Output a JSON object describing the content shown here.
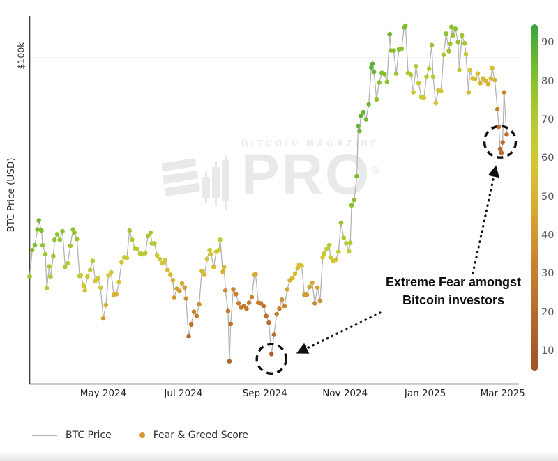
{
  "y_axis": {
    "label": "BTC Price (USD)",
    "tick": "$100k"
  },
  "x_axis": {
    "ticks": [
      {
        "label": "May 2024",
        "date": "2024-05-01"
      },
      {
        "label": "Jul 2024",
        "date": "2024-07-01"
      },
      {
        "label": "Sep 2024",
        "date": "2024-09-01"
      },
      {
        "label": "Nov 2024",
        "date": "2024-11-01"
      },
      {
        "label": "Jan 2025",
        "date": "2025-01-01"
      },
      {
        "label": "Mar 2025",
        "date": "2025-03-01"
      }
    ]
  },
  "colorbar": {
    "ticks": [
      "90",
      "80",
      "70",
      "60",
      "50",
      "40",
      "30",
      "20",
      "10"
    ],
    "value_min": 5,
    "value_max": 95,
    "stops": [
      [
        5,
        "#a0522a"
      ],
      [
        12,
        "#ab5c2b"
      ],
      [
        22,
        "#b96d2d"
      ],
      [
        32,
        "#c7812f"
      ],
      [
        42,
        "#d29b31"
      ],
      [
        50,
        "#d8b232"
      ],
      [
        58,
        "#d6c433"
      ],
      [
        66,
        "#c2cb33"
      ],
      [
        72,
        "#adc832"
      ],
      [
        80,
        "#8cc02e"
      ],
      [
        87,
        "#62b433"
      ],
      [
        94,
        "#3fa43f"
      ]
    ]
  },
  "legend": {
    "items": [
      {
        "label": "BTC Price",
        "swatch": "line",
        "color": "#b3b3b3"
      },
      {
        "label": "Fear & Greed Score",
        "swatch": "dot",
        "color": "#d9992f"
      }
    ]
  },
  "annotation": {
    "line1": "Extreme Fear amongst",
    "line2": "Bitcoin investors"
  },
  "watermark": {
    "brand": "BITCOIN MAGAZINE",
    "product": "PRO",
    "registered": "®"
  },
  "chart_data": {
    "type": "line",
    "title": "",
    "ylabel": "BTC Price (USD)",
    "y_gridlines": [
      {
        "label": "$100k",
        "value_k": 100
      }
    ],
    "x_range": [
      "2024-03-06",
      "2025-03-04"
    ],
    "y_range_k": [
      46,
      106.5
    ],
    "legend_position": "bottom",
    "color_scale_name": "Fear & Greed Score",
    "series": [
      {
        "name": "BTC Price",
        "color_by": "Fear & Greed Score",
        "points": [
          [
            "2024-03-06",
            63.8,
            76
          ],
          [
            "2024-03-08",
            68.2,
            80
          ],
          [
            "2024-03-10",
            69.0,
            81
          ],
          [
            "2024-03-12",
            71.6,
            82
          ],
          [
            "2024-03-13",
            73.1,
            84
          ],
          [
            "2024-03-15",
            71.4,
            82
          ],
          [
            "2024-03-16",
            69.0,
            79
          ],
          [
            "2024-03-18",
            67.5,
            75
          ],
          [
            "2024-03-19",
            61.9,
            68
          ],
          [
            "2024-03-21",
            65.5,
            73
          ],
          [
            "2024-03-22",
            63.8,
            71
          ],
          [
            "2024-03-24",
            67.2,
            75
          ],
          [
            "2024-03-25",
            69.9,
            79
          ],
          [
            "2024-03-27",
            70.8,
            80
          ],
          [
            "2024-03-29",
            69.9,
            78
          ],
          [
            "2024-03-31",
            71.3,
            80
          ],
          [
            "2024-04-02",
            65.4,
            71
          ],
          [
            "2024-04-04",
            66.0,
            72
          ],
          [
            "2024-04-06",
            68.9,
            76
          ],
          [
            "2024-04-08",
            71.6,
            79
          ],
          [
            "2024-04-09",
            71.1,
            78
          ],
          [
            "2024-04-11",
            70.0,
            76
          ],
          [
            "2024-04-13",
            63.9,
            66
          ],
          [
            "2024-04-14",
            64.0,
            65
          ],
          [
            "2024-04-16",
            62.3,
            60
          ],
          [
            "2024-04-17",
            61.5,
            57
          ],
          [
            "2024-04-19",
            63.8,
            62
          ],
          [
            "2024-04-21",
            64.9,
            64
          ],
          [
            "2024-04-23",
            66.4,
            68
          ],
          [
            "2024-04-25",
            63.1,
            60
          ],
          [
            "2024-04-27",
            63.5,
            61
          ],
          [
            "2024-04-29",
            62.0,
            57
          ],
          [
            "2024-05-01",
            56.9,
            43
          ],
          [
            "2024-05-03",
            59.1,
            48
          ],
          [
            "2024-05-05",
            64.0,
            58
          ],
          [
            "2024-05-07",
            64.5,
            60
          ],
          [
            "2024-05-09",
            60.8,
            51
          ],
          [
            "2024-05-11",
            60.9,
            51
          ],
          [
            "2024-05-13",
            62.9,
            56
          ],
          [
            "2024-05-15",
            66.2,
            63
          ],
          [
            "2024-05-17",
            67.0,
            65
          ],
          [
            "2024-05-19",
            66.9,
            65
          ],
          [
            "2024-05-21",
            71.4,
            75
          ],
          [
            "2024-05-23",
            69.9,
            72
          ],
          [
            "2024-05-25",
            68.5,
            70
          ],
          [
            "2024-05-27",
            68.4,
            70
          ],
          [
            "2024-05-29",
            67.6,
            68
          ],
          [
            "2024-05-31",
            67.5,
            68
          ],
          [
            "2024-06-02",
            67.7,
            69
          ],
          [
            "2024-06-04",
            70.5,
            74
          ],
          [
            "2024-06-06",
            71.1,
            75
          ],
          [
            "2024-06-07",
            69.3,
            71
          ],
          [
            "2024-06-09",
            69.3,
            70
          ],
          [
            "2024-06-11",
            67.3,
            64
          ],
          [
            "2024-06-13",
            66.7,
            62
          ],
          [
            "2024-06-15",
            66.0,
            60
          ],
          [
            "2024-06-17",
            66.5,
            61
          ],
          [
            "2024-06-19",
            64.9,
            54
          ],
          [
            "2024-06-21",
            64.1,
            51
          ],
          [
            "2024-06-23",
            63.2,
            49
          ],
          [
            "2024-06-24",
            60.3,
            40
          ],
          [
            "2024-06-26",
            61.8,
            44
          ],
          [
            "2024-06-28",
            61.4,
            43
          ],
          [
            "2024-06-30",
            62.7,
            47
          ],
          [
            "2024-07-02",
            62.0,
            44
          ],
          [
            "2024-07-03",
            60.2,
            37
          ],
          [
            "2024-07-05",
            53.9,
            22
          ],
          [
            "2024-07-07",
            55.9,
            26
          ],
          [
            "2024-07-09",
            58.0,
            32
          ],
          [
            "2024-07-11",
            57.3,
            29
          ],
          [
            "2024-07-13",
            59.2,
            37
          ],
          [
            "2024-07-15",
            64.7,
            54
          ],
          [
            "2024-07-17",
            64.1,
            52
          ],
          [
            "2024-07-19",
            66.7,
            60
          ],
          [
            "2024-07-21",
            68.2,
            63
          ],
          [
            "2024-07-22",
            67.5,
            61
          ],
          [
            "2024-07-24",
            65.4,
            55
          ],
          [
            "2024-07-26",
            67.9,
            60
          ],
          [
            "2024-07-28",
            68.2,
            61
          ],
          [
            "2024-07-29",
            69.9,
            65
          ],
          [
            "2024-07-31",
            64.6,
            50
          ],
          [
            "2024-08-01",
            65.4,
            52
          ],
          [
            "2024-08-02",
            61.5,
            37
          ],
          [
            "2024-08-04",
            58.1,
            27
          ],
          [
            "2024-08-05",
            49.8,
            17
          ],
          [
            "2024-08-06",
            56.0,
            26
          ],
          [
            "2024-08-08",
            61.7,
            34
          ],
          [
            "2024-08-10",
            60.9,
            32
          ],
          [
            "2024-08-12",
            59.4,
            30
          ],
          [
            "2024-08-14",
            58.7,
            29
          ],
          [
            "2024-08-16",
            58.9,
            29
          ],
          [
            "2024-08-18",
            58.5,
            28
          ],
          [
            "2024-08-20",
            59.5,
            30
          ],
          [
            "2024-08-22",
            60.4,
            33
          ],
          [
            "2024-08-24",
            64.1,
            47
          ],
          [
            "2024-08-25",
            64.2,
            47
          ],
          [
            "2024-08-27",
            59.5,
            29
          ],
          [
            "2024-08-29",
            59.4,
            29
          ],
          [
            "2024-08-31",
            58.9,
            26
          ],
          [
            "2024-09-02",
            57.3,
            23
          ],
          [
            "2024-09-04",
            56.2,
            22
          ],
          [
            "2024-09-06",
            51.0,
            15
          ],
          [
            "2024-09-08",
            54.2,
            22
          ],
          [
            "2024-09-10",
            57.6,
            30
          ],
          [
            "2024-09-12",
            58.5,
            32
          ],
          [
            "2024-09-14",
            60.0,
            38
          ],
          [
            "2024-09-16",
            58.9,
            33
          ],
          [
            "2024-09-18",
            61.7,
            45
          ],
          [
            "2024-09-20",
            63.2,
            49
          ],
          [
            "2024-09-22",
            63.6,
            50
          ],
          [
            "2024-09-24",
            64.3,
            52
          ],
          [
            "2024-09-26",
            65.2,
            54
          ],
          [
            "2024-09-27",
            65.8,
            56
          ],
          [
            "2024-09-29",
            65.6,
            55
          ],
          [
            "2024-10-01",
            60.8,
            42
          ],
          [
            "2024-10-03",
            60.8,
            41
          ],
          [
            "2024-10-05",
            62.1,
            45
          ],
          [
            "2024-10-07",
            62.8,
            47
          ],
          [
            "2024-10-09",
            59.4,
            36
          ],
          [
            "2024-10-11",
            62.0,
            44
          ],
          [
            "2024-10-13",
            59.8,
            38
          ],
          [
            "2024-10-15",
            67.0,
            60
          ],
          [
            "2024-10-16",
            67.6,
            63
          ],
          [
            "2024-10-18",
            68.4,
            66
          ],
          [
            "2024-10-20",
            69.0,
            70
          ],
          [
            "2024-10-21",
            67.0,
            63
          ],
          [
            "2024-10-23",
            66.4,
            60
          ],
          [
            "2024-10-25",
            66.6,
            61
          ],
          [
            "2024-10-27",
            67.9,
            65
          ],
          [
            "2024-10-29",
            72.7,
            77
          ],
          [
            "2024-10-31",
            70.2,
            72
          ],
          [
            "2024-11-02",
            69.3,
            70
          ],
          [
            "2024-11-04",
            68.0,
            66
          ],
          [
            "2024-11-05",
            69.4,
            70
          ],
          [
            "2024-11-06",
            75.6,
            80
          ],
          [
            "2024-11-08",
            76.5,
            80
          ],
          [
            "2024-11-10",
            80.4,
            83
          ],
          [
            "2024-11-11",
            88.7,
            86
          ],
          [
            "2024-11-12",
            87.9,
            84
          ],
          [
            "2024-11-13",
            90.4,
            88
          ],
          [
            "2024-11-15",
            91.0,
            86
          ],
          [
            "2024-11-17",
            89.8,
            83
          ],
          [
            "2024-11-19",
            92.3,
            84
          ],
          [
            "2024-11-21",
            98.4,
            88
          ],
          [
            "2024-11-22",
            99.0,
            89
          ],
          [
            "2024-11-23",
            97.7,
            86
          ],
          [
            "2024-11-25",
            93.1,
            78
          ],
          [
            "2024-11-27",
            95.9,
            80
          ],
          [
            "2024-11-29",
            97.5,
            82
          ],
          [
            "2024-12-01",
            97.3,
            81
          ],
          [
            "2024-12-03",
            96.0,
            78
          ],
          [
            "2024-12-05",
            103.9,
            84
          ],
          [
            "2024-12-06",
            101.2,
            81
          ],
          [
            "2024-12-08",
            101.2,
            80
          ],
          [
            "2024-12-10",
            97.4,
            75
          ],
          [
            "2024-12-12",
            101.4,
            80
          ],
          [
            "2024-12-14",
            101.5,
            80
          ],
          [
            "2024-12-16",
            105.0,
            83
          ],
          [
            "2024-12-17",
            105.3,
            82
          ],
          [
            "2024-12-19",
            97.5,
            73
          ],
          [
            "2024-12-21",
            97.2,
            72
          ],
          [
            "2024-12-23",
            94.3,
            65
          ],
          [
            "2024-12-25",
            98.6,
            71
          ],
          [
            "2024-12-27",
            95.8,
            67
          ],
          [
            "2024-12-29",
            93.5,
            62
          ],
          [
            "2024-12-31",
            93.4,
            62
          ],
          [
            "2025-01-02",
            96.9,
            70
          ],
          [
            "2025-01-04",
            98.2,
            72
          ],
          [
            "2025-01-06",
            102.1,
            78
          ],
          [
            "2025-01-07",
            96.9,
            69
          ],
          [
            "2025-01-09",
            92.5,
            58
          ],
          [
            "2025-01-11",
            94.6,
            62
          ],
          [
            "2025-01-13",
            94.5,
            60
          ],
          [
            "2025-01-15",
            100.5,
            74
          ],
          [
            "2025-01-17",
            104.0,
            79
          ],
          [
            "2025-01-19",
            101.1,
            75
          ],
          [
            "2025-01-20",
            102.3,
            76
          ],
          [
            "2025-01-21",
            105.1,
            80
          ],
          [
            "2025-01-22",
            103.7,
            78
          ],
          [
            "2025-01-24",
            104.8,
            79
          ],
          [
            "2025-01-26",
            102.6,
            76
          ],
          [
            "2025-01-27",
            98.0,
            65
          ],
          [
            "2025-01-29",
            103.7,
            76
          ],
          [
            "2025-01-31",
            102.4,
            74
          ],
          [
            "2025-02-01",
            100.6,
            64
          ],
          [
            "2025-02-03",
            94.3,
            52
          ],
          [
            "2025-02-04",
            98.0,
            58
          ],
          [
            "2025-02-06",
            96.6,
            55
          ],
          [
            "2025-02-08",
            96.5,
            54
          ],
          [
            "2025-02-10",
            97.4,
            56
          ],
          [
            "2025-02-12",
            95.8,
            52
          ],
          [
            "2025-02-14",
            96.6,
            53
          ],
          [
            "2025-02-16",
            96.2,
            52
          ],
          [
            "2025-02-18",
            95.6,
            50
          ],
          [
            "2025-02-20",
            96.6,
            52
          ],
          [
            "2025-02-21",
            98.3,
            55
          ],
          [
            "2025-02-23",
            96.3,
            49
          ],
          [
            "2025-02-25",
            91.5,
            34
          ],
          [
            "2025-02-26",
            88.6,
            25
          ],
          [
            "2025-02-27",
            84.9,
            21
          ],
          [
            "2025-02-28",
            84.3,
            20
          ],
          [
            "2025-03-01",
            86.0,
            23
          ],
          [
            "2025-03-02",
            94.3,
            34
          ],
          [
            "2025-03-04",
            87.3,
            24
          ]
        ]
      }
    ],
    "highlights": [
      {
        "date": "2024-09-06",
        "price_k": 50.2,
        "note": "Extreme Fear amongst Bitcoin investors"
      },
      {
        "date": "2025-02-27",
        "price_k": 86.1,
        "note": "Extreme Fear amongst Bitcoin investors"
      }
    ]
  }
}
